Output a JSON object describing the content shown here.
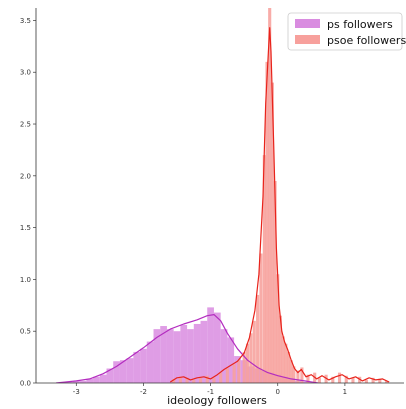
{
  "chart_data": {
    "type": "histogram-kde",
    "xlabel": "ideology followers",
    "ylabel": "",
    "xlim": [
      -3.6,
      1.88
    ],
    "ylim": [
      0,
      3.62
    ],
    "x_ticks": [
      -3,
      -2,
      -1,
      0,
      1
    ],
    "y_ticks": [
      0.0,
      0.5,
      1.0,
      1.5,
      2.0,
      2.5,
      3.0,
      3.5
    ],
    "grid": false,
    "legend_position": "top-right",
    "series": [
      {
        "name": "ps followers",
        "bar_color": "#d98ce0",
        "line_color": "#b32cbf",
        "bin_width": 0.1,
        "hist": [
          [
            -3.3,
            0.0
          ],
          [
            -3.2,
            0.01
          ],
          [
            -3.1,
            0.01
          ],
          [
            -3.0,
            0.02
          ],
          [
            -2.9,
            0.02
          ],
          [
            -2.8,
            0.04
          ],
          [
            -2.7,
            0.06
          ],
          [
            -2.6,
            0.08
          ],
          [
            -2.5,
            0.14
          ],
          [
            -2.4,
            0.21
          ],
          [
            -2.3,
            0.22
          ],
          [
            -2.2,
            0.24
          ],
          [
            -2.1,
            0.3
          ],
          [
            -2.0,
            0.33
          ],
          [
            -1.9,
            0.4
          ],
          [
            -1.8,
            0.52
          ],
          [
            -1.7,
            0.55
          ],
          [
            -1.6,
            0.52
          ],
          [
            -1.5,
            0.5
          ],
          [
            -1.4,
            0.56
          ],
          [
            -1.3,
            0.52
          ],
          [
            -1.2,
            0.57
          ],
          [
            -1.1,
            0.6
          ],
          [
            -1.0,
            0.73
          ],
          [
            -0.9,
            0.68
          ],
          [
            -0.8,
            0.52
          ],
          [
            -0.7,
            0.44
          ],
          [
            -0.6,
            0.26
          ],
          [
            -0.5,
            0.22
          ],
          [
            -0.4,
            0.16
          ],
          [
            -0.3,
            0.14
          ],
          [
            -0.2,
            0.12
          ],
          [
            -0.1,
            0.1
          ],
          [
            0.0,
            0.08
          ],
          [
            0.1,
            0.06
          ],
          [
            0.2,
            0.04
          ],
          [
            0.3,
            0.02
          ],
          [
            0.4,
            0.01
          ]
        ],
        "kde": [
          [
            -3.3,
            0.0
          ],
          [
            -3.0,
            0.02
          ],
          [
            -2.8,
            0.04
          ],
          [
            -2.6,
            0.09
          ],
          [
            -2.4,
            0.16
          ],
          [
            -2.2,
            0.25
          ],
          [
            -2.0,
            0.34
          ],
          [
            -1.8,
            0.44
          ],
          [
            -1.6,
            0.52
          ],
          [
            -1.4,
            0.57
          ],
          [
            -1.2,
            0.61
          ],
          [
            -1.05,
            0.65
          ],
          [
            -0.95,
            0.66
          ],
          [
            -0.85,
            0.6
          ],
          [
            -0.75,
            0.48
          ],
          [
            -0.6,
            0.33
          ],
          [
            -0.45,
            0.22
          ],
          [
            -0.3,
            0.15
          ],
          [
            -0.15,
            0.1
          ],
          [
            0.0,
            0.07
          ],
          [
            0.2,
            0.04
          ],
          [
            0.4,
            0.02
          ],
          [
            0.6,
            0.0
          ]
        ]
      },
      {
        "name": "psoe followers",
        "bar_color": "#f7a09c",
        "line_color": "#e8231b",
        "bin_width": 0.0464,
        "hist": [
          [
            -1.55,
            0.04
          ],
          [
            -1.45,
            0.06
          ],
          [
            -1.35,
            0.05
          ],
          [
            -1.25,
            0.03
          ],
          [
            -1.15,
            0.05
          ],
          [
            -1.05,
            0.07
          ],
          [
            -0.95,
            0.05
          ],
          [
            -0.85,
            0.1
          ],
          [
            -0.75,
            0.14
          ],
          [
            -0.65,
            0.18
          ],
          [
            -0.58,
            0.22
          ],
          [
            -0.5,
            0.3
          ],
          [
            -0.45,
            0.38
          ],
          [
            -0.4,
            0.48
          ],
          [
            -0.35,
            0.6
          ],
          [
            -0.3,
            0.85
          ],
          [
            -0.25,
            1.25
          ],
          [
            -0.2,
            2.2
          ],
          [
            -0.16,
            3.1
          ],
          [
            -0.12,
            3.62
          ],
          [
            -0.08,
            2.9
          ],
          [
            -0.04,
            1.95
          ],
          [
            0.0,
            1.05
          ],
          [
            0.04,
            0.65
          ],
          [
            0.08,
            0.45
          ],
          [
            0.12,
            0.38
          ],
          [
            0.16,
            0.3
          ],
          [
            0.2,
            0.22
          ],
          [
            0.24,
            0.16
          ],
          [
            0.3,
            0.12
          ],
          [
            0.36,
            0.15
          ],
          [
            0.45,
            0.08
          ],
          [
            0.55,
            0.1
          ],
          [
            0.62,
            0.05
          ],
          [
            0.72,
            0.08
          ],
          [
            0.82,
            0.06
          ],
          [
            0.92,
            0.1
          ],
          [
            1.02,
            0.07
          ],
          [
            1.12,
            0.05
          ],
          [
            1.22,
            0.06
          ],
          [
            1.32,
            0.03
          ],
          [
            1.42,
            0.05
          ],
          [
            1.52,
            0.04
          ],
          [
            1.62,
            0.02
          ]
        ],
        "kde": [
          [
            -1.6,
            0.01
          ],
          [
            -1.5,
            0.05
          ],
          [
            -1.4,
            0.06
          ],
          [
            -1.3,
            0.03
          ],
          [
            -1.2,
            0.05
          ],
          [
            -1.1,
            0.06
          ],
          [
            -1.0,
            0.04
          ],
          [
            -0.9,
            0.08
          ],
          [
            -0.8,
            0.13
          ],
          [
            -0.7,
            0.17
          ],
          [
            -0.6,
            0.21
          ],
          [
            -0.5,
            0.29
          ],
          [
            -0.42,
            0.44
          ],
          [
            -0.34,
            0.7
          ],
          [
            -0.28,
            1.05
          ],
          [
            -0.22,
            1.8
          ],
          [
            -0.18,
            2.7
          ],
          [
            -0.14,
            3.2
          ],
          [
            -0.12,
            3.43
          ],
          [
            -0.1,
            3.2
          ],
          [
            -0.06,
            2.3
          ],
          [
            -0.02,
            1.3
          ],
          [
            0.02,
            0.75
          ],
          [
            0.06,
            0.5
          ],
          [
            0.1,
            0.4
          ],
          [
            0.15,
            0.32
          ],
          [
            0.2,
            0.22
          ],
          [
            0.25,
            0.14
          ],
          [
            0.3,
            0.1
          ],
          [
            0.35,
            0.13
          ],
          [
            0.42,
            0.06
          ],
          [
            0.5,
            0.08
          ],
          [
            0.58,
            0.04
          ],
          [
            0.66,
            0.07
          ],
          [
            0.76,
            0.03
          ],
          [
            0.86,
            0.06
          ],
          [
            0.96,
            0.08
          ],
          [
            1.06,
            0.04
          ],
          [
            1.16,
            0.06
          ],
          [
            1.26,
            0.02
          ],
          [
            1.36,
            0.05
          ],
          [
            1.46,
            0.03
          ],
          [
            1.56,
            0.04
          ],
          [
            1.66,
            0.01
          ]
        ]
      }
    ]
  }
}
